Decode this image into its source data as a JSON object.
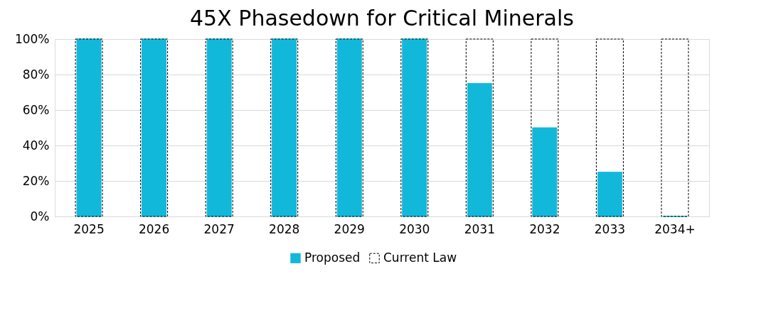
{
  "chart_data": {
    "type": "bar",
    "title": "45X Phasedown for Critical Minerals",
    "categories": [
      "2025",
      "2026",
      "2027",
      "2028",
      "2029",
      "2030",
      "2031",
      "2032",
      "2033",
      "2034+"
    ],
    "series": [
      {
        "name": "Proposed",
        "color": "#12b8d9",
        "line_style": "solid",
        "values": [
          100,
          100,
          100,
          100,
          100,
          100,
          75,
          50,
          25,
          0
        ]
      },
      {
        "name": "Current Law",
        "color": "#000000",
        "line_style": "dashed",
        "values": [
          100,
          100,
          100,
          100,
          100,
          100,
          100,
          100,
          100,
          100
        ]
      }
    ],
    "ylim": [
      0,
      100
    ],
    "yticks": [
      {
        "value": 0,
        "label": "0%"
      },
      {
        "value": 20,
        "label": "20%"
      },
      {
        "value": 40,
        "label": "40%"
      },
      {
        "value": 60,
        "label": "60%"
      },
      {
        "value": 80,
        "label": "80%"
      },
      {
        "value": 100,
        "label": "100%"
      }
    ],
    "grid": "y",
    "legend": "bottom"
  }
}
